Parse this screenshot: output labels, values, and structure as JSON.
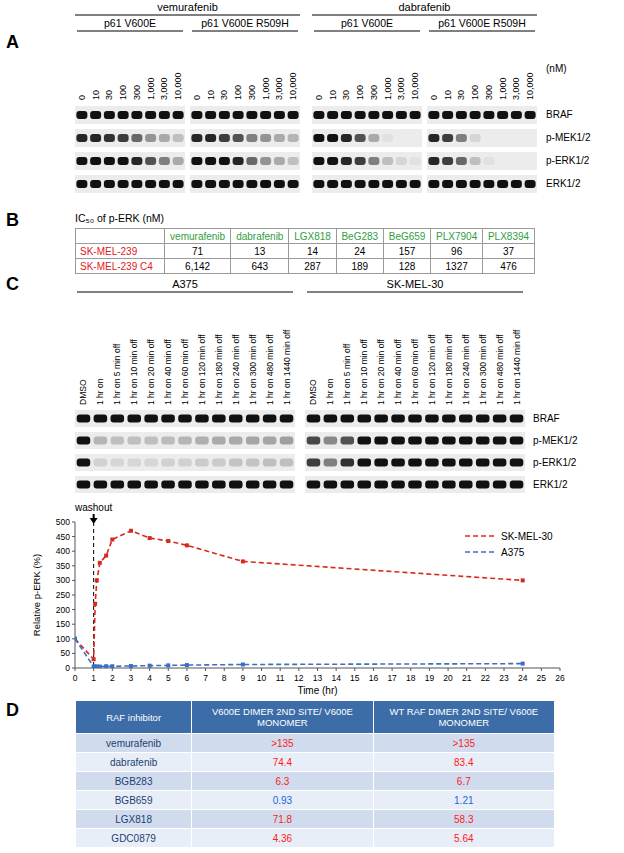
{
  "panel_a": {
    "label": "A",
    "unit": "(nM)",
    "doses": [
      "0",
      "10",
      "30",
      "100",
      "300",
      "1,000",
      "3,000",
      "10,000"
    ],
    "rows": [
      "BRAF",
      "p-MEK1/2",
      "p-ERK1/2",
      "ERK1/2"
    ],
    "drugs": [
      {
        "name": "vemurafenib",
        "groups": [
          {
            "name": "p61 V600E",
            "bands": [
              [
                1,
                1,
                1,
                1,
                1,
                1,
                1,
                1
              ],
              [
                0.9,
                0.9,
                0.85,
                0.8,
                0.6,
                0.4,
                0.3,
                0.2
              ],
              [
                1,
                1,
                1,
                1,
                0.9,
                0.7,
                0.5,
                0.3
              ],
              [
                1,
                1,
                1,
                1,
                1,
                1,
                1,
                1
              ]
            ]
          },
          {
            "name": "p61 V600E R509H",
            "bands": [
              [
                1,
                1,
                1,
                1,
                1,
                1,
                1,
                1
              ],
              [
                0.9,
                0.9,
                0.8,
                0.7,
                0.5,
                0.4,
                0.3,
                0.25
              ],
              [
                1,
                1,
                1,
                0.9,
                0.6,
                0.4,
                0.3,
                0.2
              ],
              [
                1,
                1,
                1,
                1,
                1,
                1,
                1,
                1
              ]
            ]
          }
        ]
      },
      {
        "name": "dabrafenib",
        "groups": [
          {
            "name": "p61 V600E",
            "bands": [
              [
                1,
                1,
                1,
                1,
                1,
                1,
                1,
                1
              ],
              [
                1,
                1,
                0.9,
                0.7,
                0.3,
                0.05,
                0,
                0
              ],
              [
                1,
                1,
                0.9,
                0.8,
                0.5,
                0.2,
                0.1,
                0.05
              ],
              [
                1,
                1,
                1,
                1,
                1,
                1,
                1,
                1
              ]
            ]
          },
          {
            "name": "p61 V600E R509H",
            "bands": [
              [
                1,
                1,
                1,
                1,
                1,
                1,
                1,
                1
              ],
              [
                0.9,
                0.8,
                0.5,
                0.1,
                0,
                0,
                0,
                0
              ],
              [
                0.9,
                0.8,
                0.6,
                0.2,
                0.05,
                0,
                0,
                0
              ],
              [
                1,
                1,
                1,
                1,
                1,
                1,
                1,
                1
              ]
            ]
          }
        ]
      }
    ]
  },
  "panel_b": {
    "label": "B",
    "title": "IC₅₀ of p-ERK (nM)",
    "header": {
      "color": "#2e9e3e",
      "cells": [
        "vemurafenib",
        "dabrafenib",
        "LGX818",
        "BeG283",
        "BeG659",
        "PLX7904",
        "PLX8394"
      ]
    },
    "rows": [
      {
        "name": "SK-MEL-239",
        "color": "#e02020",
        "cells": [
          "71",
          "13",
          "14",
          "24",
          "157",
          "96",
          "37"
        ]
      },
      {
        "name": "SK-MEL-239 C4",
        "color": "#e02020",
        "cells": [
          "6,142",
          "643",
          "287",
          "189",
          "128",
          "1327",
          "476"
        ]
      }
    ]
  },
  "panel_c": {
    "label": "C",
    "rows": [
      "BRAF",
      "p-MEK1/2",
      "p-ERK1/2",
      "ERK1/2"
    ],
    "lanes": [
      "DMSO",
      "1 hr on",
      "1 hr on 5 min off",
      "1 hr on 10 min off",
      "1 hr on 20 min off",
      "1 hr on 40 min off",
      "1 hr on 60 min off",
      "1 hr on 120 min off",
      "1 hr on 180 min off",
      "1 hr on 240 min off",
      "1 hr on 300 min off",
      "1 hr on 480 min off",
      "1 hr on 1440 min off"
    ],
    "groups": [
      {
        "name": "A375",
        "bands": [
          [
            1,
            1,
            1,
            1,
            1,
            1,
            1,
            1,
            1,
            1,
            1,
            1,
            1
          ],
          [
            1,
            0.25,
            0.2,
            0.2,
            0.2,
            0.22,
            0.25,
            0.28,
            0.3,
            0.3,
            0.32,
            0.32,
            0.35
          ],
          [
            1,
            0.12,
            0.1,
            0.1,
            0.1,
            0.12,
            0.12,
            0.15,
            0.15,
            0.18,
            0.18,
            0.2,
            0.2
          ],
          [
            1,
            1,
            1,
            1,
            1,
            1,
            1,
            1,
            1,
            1,
            1,
            1,
            1
          ]
        ]
      },
      {
        "name": "SK-MEL-30",
        "bands": [
          [
            1,
            1,
            1,
            1,
            1,
            1,
            1,
            1,
            1,
            1,
            1,
            1,
            1
          ],
          [
            0.75,
            0.45,
            0.7,
            1,
            1,
            1,
            1,
            1,
            1,
            1,
            1,
            1,
            1
          ],
          [
            0.8,
            0.5,
            0.85,
            1,
            1,
            1,
            1,
            1,
            1,
            1,
            1,
            1,
            1
          ],
          [
            1,
            1,
            1,
            1,
            1,
            1,
            1,
            1,
            1,
            1,
            1,
            1,
            1
          ]
        ]
      }
    ]
  },
  "chart_data": {
    "type": "line",
    "x_label": "Time (hr)",
    "y_label": "Relative p-ERK (%)",
    "annotations": [
      {
        "text": "washout",
        "x": 1
      }
    ],
    "xlim": [
      0,
      26
    ],
    "xticks": [
      0,
      1,
      2,
      3,
      4,
      5,
      6,
      7,
      8,
      9,
      10,
      11,
      12,
      13,
      14,
      15,
      16,
      17,
      18,
      19,
      20,
      21,
      22,
      23,
      24,
      25,
      26
    ],
    "ylim": [
      0,
      500
    ],
    "yticks": [
      0,
      50,
      100,
      150,
      200,
      250,
      300,
      350,
      400,
      450,
      500
    ],
    "grid": false,
    "legend": "upper right",
    "series": [
      {
        "name": "SK-MEL-30",
        "color": "#d62a1f",
        "line_style": "dashed",
        "marker": "square",
        "x": [
          0,
          1,
          1.08,
          1.17,
          1.33,
          1.67,
          2,
          3,
          4,
          5,
          6,
          9,
          24
        ],
        "values": [
          100,
          30,
          220,
          300,
          360,
          385,
          440,
          470,
          445,
          435,
          420,
          365,
          300
        ]
      },
      {
        "name": "A375",
        "color": "#3a6fc4",
        "line_style": "dashed",
        "marker": "square",
        "x": [
          0,
          1,
          1.08,
          1.17,
          1.33,
          1.67,
          2,
          3,
          4,
          5,
          6,
          9,
          24
        ],
        "values": [
          100,
          5,
          5,
          5,
          5,
          6,
          6,
          7,
          8,
          9,
          10,
          12,
          15
        ]
      }
    ]
  },
  "panel_d": {
    "label": "D",
    "header": [
      "RAF inhibitor",
      "V600E DIMER 2ND SITE/ V600E MONOMER",
      "WT RAF DIMER 2ND SITE/ V600E MONOMER"
    ],
    "rows": [
      {
        "color": "#ff1a1a",
        "cells": [
          "vemurafenib",
          ">135",
          ">135"
        ]
      },
      {
        "color": "#ff1a1a",
        "cells": [
          "dabrafenib",
          "74.4",
          "83.4"
        ]
      },
      {
        "color": "#ff1a1a",
        "cells": [
          "BGB283",
          "6.3",
          "6.7"
        ]
      },
      {
        "color": "#1a66d9",
        "cells": [
          "BGB659",
          "0.93",
          "1.21"
        ]
      },
      {
        "color": "#ff1a1a",
        "cells": [
          "LGX818",
          "71.8",
          "58.3"
        ]
      },
      {
        "color": "#ff1a1a",
        "cells": [
          "GDC0879",
          "4.36",
          "5.64"
        ]
      }
    ]
  }
}
